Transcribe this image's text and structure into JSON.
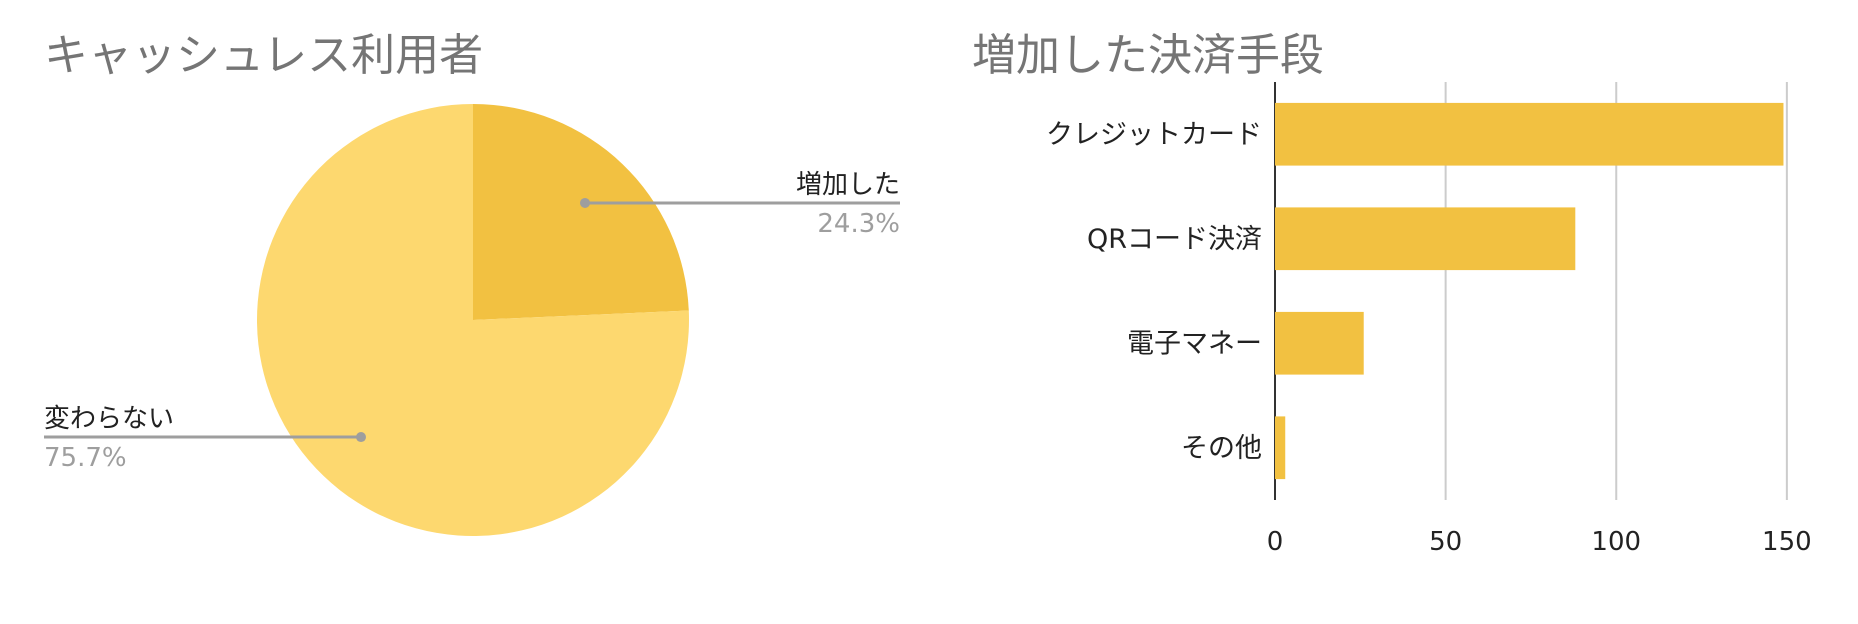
{
  "chart_data": [
    {
      "type": "pie",
      "title": "キャッシュレス利用者",
      "slices": [
        {
          "label": "増加した",
          "value": 24.3,
          "display": "24.3%",
          "color": "#F2C141"
        },
        {
          "label": "変わらない",
          "value": 75.7,
          "display": "75.7%",
          "color": "#FDD86F"
        }
      ]
    },
    {
      "type": "bar",
      "orientation": "horizontal",
      "title": "増加した決済手段",
      "categories": [
        "クレジットカード",
        "QRコード決済",
        "電子マネー",
        "その他"
      ],
      "values": [
        149,
        88,
        26,
        3
      ],
      "xlim": [
        0,
        160
      ],
      "xticks": [
        "0",
        "50",
        "100",
        "150"
      ],
      "xtick_values": [
        0,
        50,
        100,
        150
      ],
      "grid": true,
      "bar_color": "#F2C141"
    }
  ]
}
